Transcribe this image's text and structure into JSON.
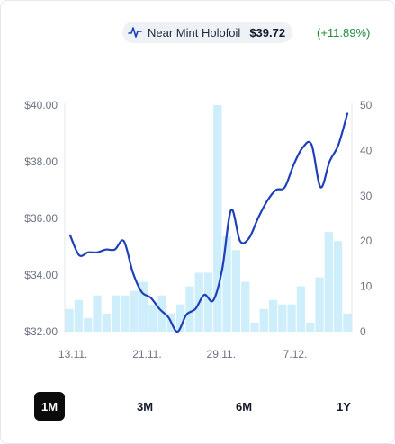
{
  "legend": {
    "icon": "line-chart-icon",
    "variant": "Near Mint Holofoil",
    "price": "$39.72",
    "change": "(+11.89%)"
  },
  "colors": {
    "line": "#1d3fb8",
    "bars": "#cfeefc",
    "positive": "#1f8a3b",
    "active_range_bg": "#0b0b0b"
  },
  "ranges": [
    {
      "label": "1M",
      "active": true
    },
    {
      "label": "3M",
      "active": false
    },
    {
      "label": "6M",
      "active": false
    },
    {
      "label": "1Y",
      "active": false
    }
  ],
  "chart_data": {
    "type": "line+bar",
    "x_tick_labels": [
      "13.11.",
      "21.11.",
      "29.11.",
      "7.12."
    ],
    "y_left": {
      "ticks": [
        "$32.00",
        "$34.00",
        "$36.00",
        "$38.00",
        "$40.00"
      ],
      "range": [
        32,
        40
      ]
    },
    "y_right": {
      "ticks": [
        "0",
        "10",
        "20",
        "30",
        "40",
        "50"
      ],
      "range": [
        0,
        50
      ]
    },
    "grid": false,
    "series": [
      {
        "type": "line",
        "axis": "left",
        "values": [
          35.4,
          34.7,
          34.8,
          34.8,
          34.9,
          34.9,
          35.2,
          34.1,
          33.4,
          33.2,
          32.8,
          32.5,
          32.0,
          32.6,
          32.8,
          33.3,
          33.1,
          34.2,
          36.3,
          35.2,
          35.3,
          36.0,
          36.6,
          37.0,
          37.1,
          37.9,
          38.5,
          38.6,
          37.1,
          38.0,
          38.6,
          39.7
        ]
      },
      {
        "type": "bar",
        "axis": "right",
        "values": [
          5,
          7,
          3,
          8,
          4,
          8,
          8,
          9,
          11,
          6,
          8,
          4,
          6,
          10,
          13,
          13,
          50,
          21,
          18,
          11,
          2,
          5,
          7,
          6,
          6,
          10,
          2,
          12,
          22,
          20,
          4
        ]
      }
    ]
  }
}
